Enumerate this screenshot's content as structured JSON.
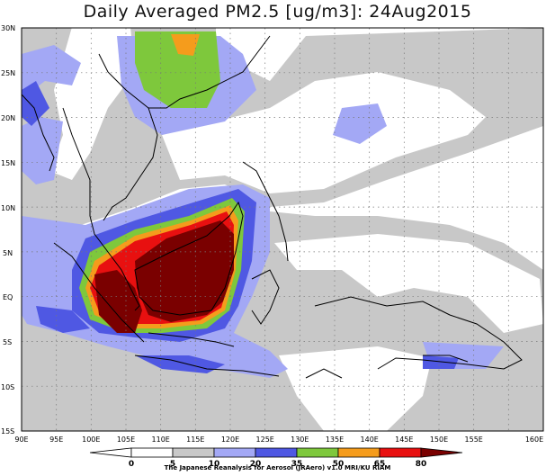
{
  "title": "Daily Averaged PM2.5 [ug/m3]: 24Aug2015",
  "credit": "The Japanese Reanalysis for Aerosol (JRAero) v1.0 MRI/KU RIAM",
  "lat_ticks": [
    "30N",
    "25N",
    "20N",
    "15N",
    "10N",
    "5N",
    "EQ",
    "5S",
    "10S",
    "15S"
  ],
  "lon_ticks": [
    "90E",
    "95E",
    "100E",
    "105E",
    "110E",
    "115E",
    "120E",
    "125E",
    "130E",
    "135E",
    "140E",
    "145E",
    "150E",
    "155E",
    "160E"
  ],
  "legend": {
    "levels": [
      "0",
      "5",
      "10",
      "20",
      "35",
      "50",
      "65",
      "80"
    ],
    "colors": [
      "#ffffff",
      "#c8c8c8",
      "#a3a8f5",
      "#4f58e3",
      "#7ec83c",
      "#f59c1c",
      "#e81010",
      "#7a0000"
    ]
  }
}
